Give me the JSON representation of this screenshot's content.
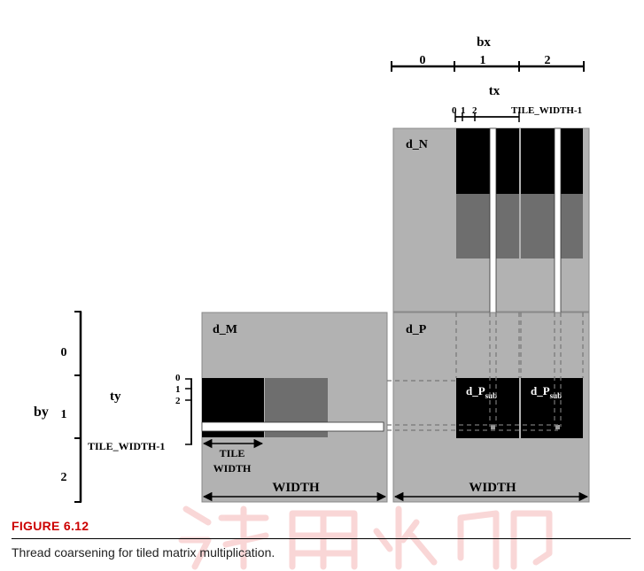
{
  "figure": {
    "label": "FIGURE 6.12",
    "caption": "Thread coarsening for tiled matrix multiplication."
  },
  "diagram": {
    "bx_label": "bx",
    "bx_indices": [
      "0",
      "1",
      "2"
    ],
    "tx_label": "tx",
    "tx_indices": [
      "0",
      "1",
      "2"
    ],
    "tile_width_minus_one": "TILE_WIDTH-1",
    "by_label": "by",
    "by_indices": [
      "0",
      "1",
      "2"
    ],
    "ty_label": "ty",
    "ty_indices": [
      "0",
      "1",
      "2"
    ],
    "matrix_n": "d_N",
    "matrix_m": "d_M",
    "matrix_p": "d_P",
    "psub_main": "d_P",
    "psub_script": "sub",
    "tile_label_line1": "TILE",
    "tile_label_line2": "WIDTH",
    "width_label": "WIDTH"
  },
  "colors": {
    "matrix_fill": "#b2b2b2",
    "tile_black": "#000000",
    "tile_gray": "#6e6e6e",
    "watermark": "#e54b4b"
  }
}
